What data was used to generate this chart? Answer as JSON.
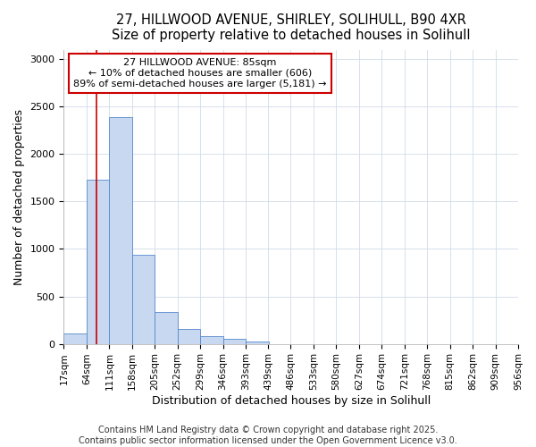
{
  "title_line1": "27, HILLWOOD AVENUE, SHIRLEY, SOLIHULL, B90 4XR",
  "title_line2": "Size of property relative to detached houses in Solihull",
  "xlabel": "Distribution of detached houses by size in Solihull",
  "ylabel": "Number of detached properties",
  "bin_edges": [
    17,
    64,
    111,
    158,
    205,
    252,
    299,
    346,
    393,
    439,
    486,
    533,
    580,
    627,
    674,
    721,
    768,
    815,
    862,
    909,
    956
  ],
  "bar_heights": [
    110,
    1730,
    2390,
    940,
    340,
    160,
    80,
    50,
    25,
    0,
    0,
    0,
    0,
    0,
    0,
    0,
    0,
    0,
    0,
    0
  ],
  "bar_color": "#c8d8f0",
  "bar_edge_color": "#5588cc",
  "red_line_x": 85,
  "annotation_title": "27 HILLWOOD AVENUE: 85sqm",
  "annotation_line2": "← 10% of detached houses are smaller (606)",
  "annotation_line3": "89% of semi-detached houses are larger (5,181) →",
  "annotation_box_color": "#ffffff",
  "annotation_box_edge": "#cc0000",
  "red_line_color": "#cc0000",
  "ylim": [
    0,
    3100
  ],
  "xlim_min": 17,
  "xlim_max": 956,
  "footer_line1": "Contains HM Land Registry data © Crown copyright and database right 2025.",
  "footer_line2": "Contains public sector information licensed under the Open Government Licence v3.0.",
  "bg_color": "#ffffff",
  "grid_color": "#d0dce8",
  "title_fontsize": 10.5,
  "axis_label_fontsize": 9,
  "tick_fontsize": 7.5,
  "footer_fontsize": 7,
  "annot_fontsize": 8
}
